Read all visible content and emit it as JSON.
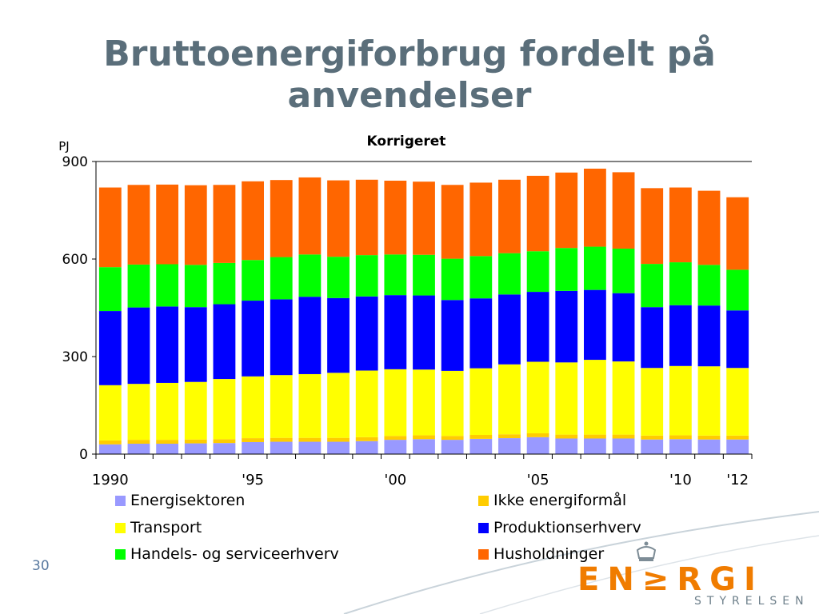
{
  "slide": {
    "title": "Bruttoenergiforbrug fordelt på anvendelser",
    "page_number": "30"
  },
  "logo": {
    "word": "EN≥RGI",
    "sub": "STYRELSEN"
  },
  "colors": {
    "energisektoren": "#9999ff",
    "ikke_energiformal": "#ffcc00",
    "transport": "#ffff00",
    "produktionserhverv": "#0000ff",
    "handel": "#00ff00",
    "husholdninger": "#ff6600",
    "title": "#5a6e7a"
  },
  "chart_data": {
    "type": "bar",
    "stacked": true,
    "title": "Korrigeret",
    "ylabel": "PJ",
    "ylim": [
      0,
      900
    ],
    "yticks": [
      0,
      300,
      600,
      900
    ],
    "x_tick_labels": [
      {
        "label": "1990",
        "year": 1990
      },
      {
        "label": "'95",
        "year": 1995
      },
      {
        "label": "'00",
        "year": 2000
      },
      {
        "label": "'05",
        "year": 2005
      },
      {
        "label": "'10",
        "year": 2010
      },
      {
        "label": "'12",
        "year": 2012
      }
    ],
    "grid": "horizontal line at 900",
    "legend_position": "bottom",
    "categories": [
      1990,
      1991,
      1992,
      1993,
      1994,
      1995,
      1996,
      1997,
      1998,
      1999,
      2000,
      2001,
      2002,
      2003,
      2004,
      2005,
      2006,
      2007,
      2008,
      2009,
      2010,
      2011,
      2012
    ],
    "series": [
      {
        "name": "Energisektoren",
        "color": "#9999ff",
        "values": [
          30,
          32,
          32,
          33,
          34,
          37,
          38,
          38,
          38,
          40,
          44,
          46,
          44,
          47,
          49,
          52,
          48,
          48,
          48,
          45,
          46,
          45,
          45
        ]
      },
      {
        "name": "Ikke energiformål",
        "color": "#ffcc00",
        "values": [
          12,
          12,
          12,
          12,
          12,
          12,
          12,
          12,
          12,
          12,
          12,
          12,
          12,
          12,
          12,
          12,
          12,
          12,
          12,
          12,
          12,
          12,
          12
        ]
      },
      {
        "name": "Transport",
        "color": "#ffff00",
        "values": [
          170,
          172,
          175,
          177,
          185,
          190,
          193,
          196,
          200,
          205,
          205,
          202,
          200,
          205,
          215,
          220,
          222,
          230,
          225,
          208,
          213,
          213,
          208
        ]
      },
      {
        "name": "Produktionserhverv",
        "color": "#0000ff",
        "values": [
          228,
          235,
          235,
          230,
          230,
          233,
          233,
          238,
          230,
          228,
          228,
          228,
          218,
          215,
          215,
          215,
          220,
          215,
          210,
          187,
          187,
          187,
          177
        ]
      },
      {
        "name": "Handels- og serviceerhverv",
        "color": "#00ff00",
        "values": [
          135,
          132,
          130,
          130,
          127,
          125,
          130,
          130,
          127,
          127,
          125,
          125,
          127,
          130,
          127,
          125,
          132,
          133,
          137,
          133,
          132,
          125,
          125
        ]
      },
      {
        "name": "Husholdninger",
        "color": "#ff6600",
        "values": [
          245,
          245,
          245,
          245,
          240,
          242,
          237,
          237,
          235,
          232,
          227,
          225,
          227,
          226,
          226,
          232,
          232,
          240,
          235,
          233,
          230,
          228,
          223
        ]
      }
    ]
  },
  "legend": {
    "items": [
      {
        "label": "Energisektoren"
      },
      {
        "label": "Ikke energiformål"
      },
      {
        "label": "Transport"
      },
      {
        "label": "Produktionserhverv"
      },
      {
        "label": "Handels- og serviceerhverv"
      },
      {
        "label": "Husholdninger"
      }
    ]
  }
}
